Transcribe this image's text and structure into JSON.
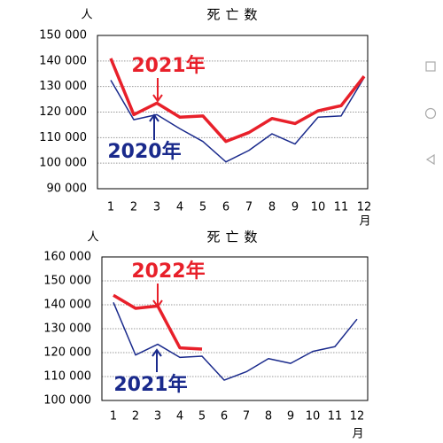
{
  "chart_data": [
    {
      "type": "line",
      "title": "死亡数",
      "y_label": "人",
      "x_label": "月",
      "categories": [
        "1",
        "2",
        "3",
        "4",
        "5",
        "6",
        "7",
        "8",
        "9",
        "10",
        "11",
        "12"
      ],
      "ylim": [
        90000,
        150000
      ],
      "yticks": [
        {
          "value": 90000,
          "label": "90 000"
        },
        {
          "value": 100000,
          "label": "100 000"
        },
        {
          "value": 110000,
          "label": "110 000"
        },
        {
          "value": 120000,
          "label": "120 000"
        },
        {
          "value": 130000,
          "label": "130 000"
        },
        {
          "value": 140000,
          "label": "140 000"
        },
        {
          "value": 150000,
          "label": "150 000"
        }
      ],
      "grid": true,
      "series": [
        {
          "name": "2021年",
          "color": "#e8202a",
          "values": [
            141000,
            119000,
            123500,
            118000,
            118500,
            108500,
            112000,
            117500,
            115500,
            120500,
            122500,
            134000
          ]
        },
        {
          "name": "2020年",
          "color": "#1a2a8c",
          "values": [
            132500,
            117000,
            119000,
            113500,
            108500,
            100500,
            105000,
            111500,
            107500,
            118000,
            118500,
            133500
          ]
        }
      ]
    },
    {
      "type": "line",
      "title": "死亡数",
      "y_label": "人",
      "x_label": "月",
      "categories": [
        "1",
        "2",
        "3",
        "4",
        "5",
        "6",
        "7",
        "8",
        "9",
        "10",
        "11",
        "12"
      ],
      "ylim": [
        100000,
        160000
      ],
      "yticks": [
        {
          "value": 100000,
          "label": "100 000"
        },
        {
          "value": 110000,
          "label": "110 000"
        },
        {
          "value": 120000,
          "label": "120 000"
        },
        {
          "value": 130000,
          "label": "130 000"
        },
        {
          "value": 140000,
          "label": "140 000"
        },
        {
          "value": 150000,
          "label": "150 000"
        },
        {
          "value": 160000,
          "label": "160 000"
        }
      ],
      "grid": true,
      "series": [
        {
          "name": "2022年",
          "color": "#e8202a",
          "values": [
            144000,
            138500,
            139500,
            122000,
            121500,
            null,
            null,
            null,
            null,
            null,
            null,
            null
          ]
        },
        {
          "name": "2021年",
          "color": "#1a2a8c",
          "values": [
            141000,
            119000,
            123500,
            118000,
            118500,
            108500,
            112000,
            117500,
            115500,
            120500,
            122500,
            134000
          ]
        }
      ]
    }
  ]
}
